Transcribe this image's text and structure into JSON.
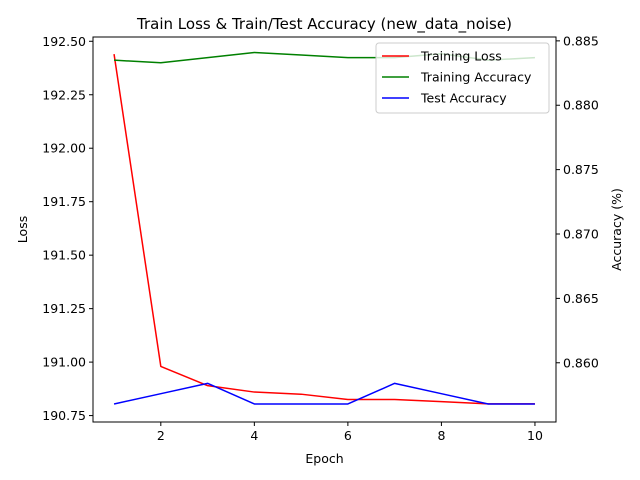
{
  "chart_data": {
    "type": "line",
    "title": "Train Loss & Train/Test Accuracy (new_data_noise)",
    "xlabel": "Epoch",
    "ylabel_left": "Loss",
    "ylabel_right": "Accuracy (%)",
    "x": [
      1,
      2,
      3,
      4,
      5,
      6,
      7,
      8,
      9,
      10
    ],
    "xlim": [
      0.55,
      10.45
    ],
    "xticks": [
      2,
      4,
      6,
      8,
      10
    ],
    "ylim_left": [
      190.72,
      192.52
    ],
    "yticks_left": [
      "190.75",
      "191.00",
      "191.25",
      "191.50",
      "191.75",
      "192.00",
      "192.25",
      "192.50"
    ],
    "ylim_right": [
      0.8554,
      0.8853
    ],
    "yticks_right": [
      "0.860",
      "0.865",
      "0.870",
      "0.875",
      "0.880",
      "0.885"
    ],
    "legend_position": "top-right",
    "grid": false,
    "series": [
      {
        "name": "Training Loss",
        "axis": "left",
        "color": "#ff0000",
        "values": [
          192.44,
          190.98,
          190.89,
          190.86,
          190.85,
          190.825,
          190.825,
          190.815,
          190.805,
          190.805
        ]
      },
      {
        "name": "Training Accuracy",
        "axis": "right",
        "color": "#008000",
        "values": [
          0.8835,
          0.8833,
          0.8837,
          0.8841,
          0.8839,
          0.8837,
          0.8837,
          0.884,
          0.8835,
          0.8837
        ]
      },
      {
        "name": "Test Accuracy",
        "axis": "right",
        "color": "#0000ff",
        "values": [
          0.8568,
          0.8576,
          0.8584,
          0.8568,
          0.8568,
          0.8568,
          0.8584,
          0.8576,
          0.8568,
          0.8568
        ]
      }
    ]
  }
}
